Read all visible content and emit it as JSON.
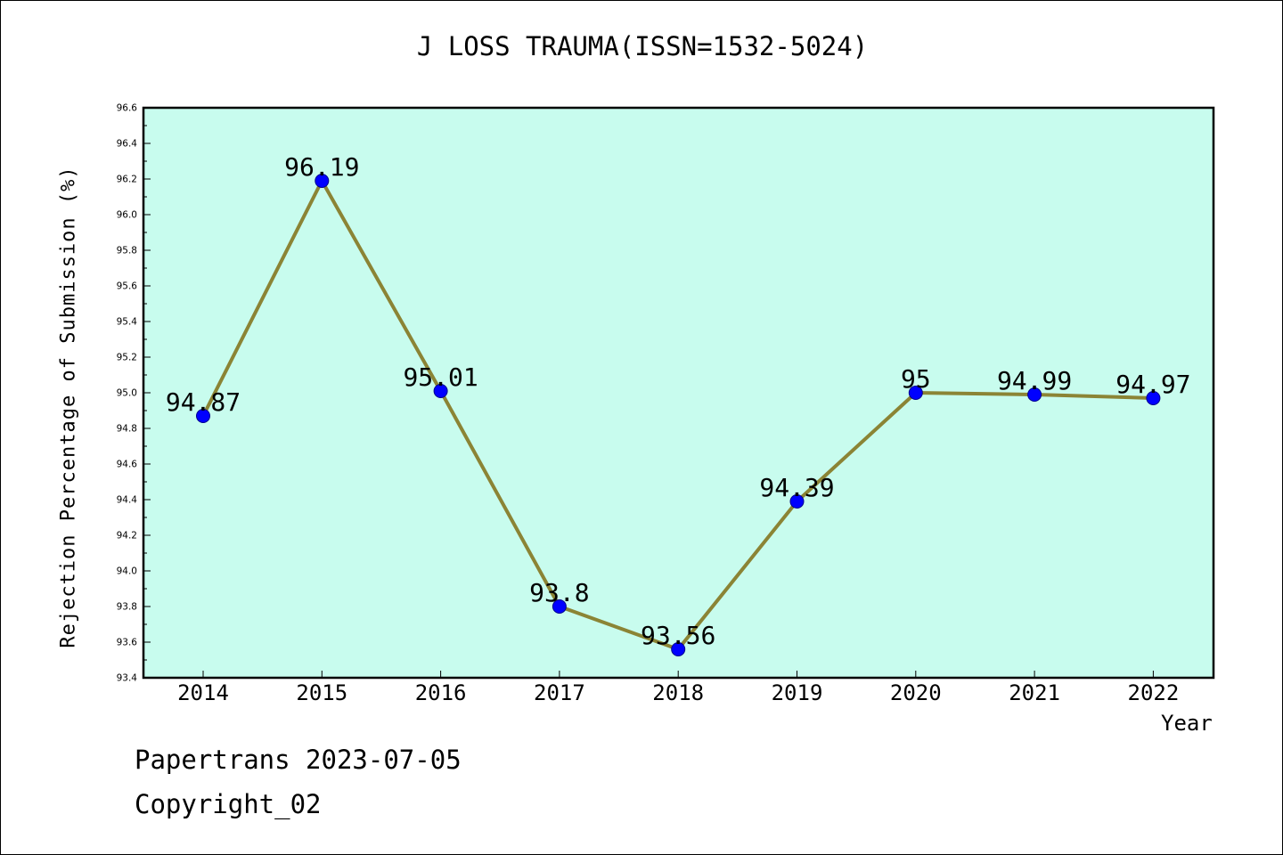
{
  "chart_data": {
    "type": "line",
    "title": "J LOSS TRAUMA(ISSN=1532-5024)",
    "xlabel": "Year",
    "ylabel": "Rejection Percentage of Submission (%)",
    "categories": [
      "2014",
      "2015",
      "2016",
      "2017",
      "2018",
      "2019",
      "2020",
      "2021",
      "2022"
    ],
    "series": [
      {
        "values": [
          94.87,
          96.19,
          95.01,
          93.8,
          93.56,
          94.39,
          95.0,
          94.99,
          94.97
        ],
        "data_labels": [
          "94.87",
          "96.19",
          "95.01",
          "93.8",
          "93.56",
          "94.39",
          "95",
          "94.99",
          "94.97"
        ]
      }
    ],
    "ylim": [
      93.4,
      96.6
    ],
    "yticks": [
      "93.4",
      "93.6",
      "93.8",
      "94.0",
      "94.2",
      "94.4",
      "94.6",
      "94.8",
      "95.0",
      "95.2",
      "95.4",
      "95.6",
      "95.8",
      "96.0",
      "96.2",
      "96.4",
      "96.6"
    ],
    "grid": false,
    "colors": {
      "plot_background": "#c8fcee",
      "line": "#8b8435",
      "marker": "#0000ff"
    }
  },
  "footer": {
    "line1": "Papertrans 2023-07-05",
    "line2": "Copyright_02"
  }
}
